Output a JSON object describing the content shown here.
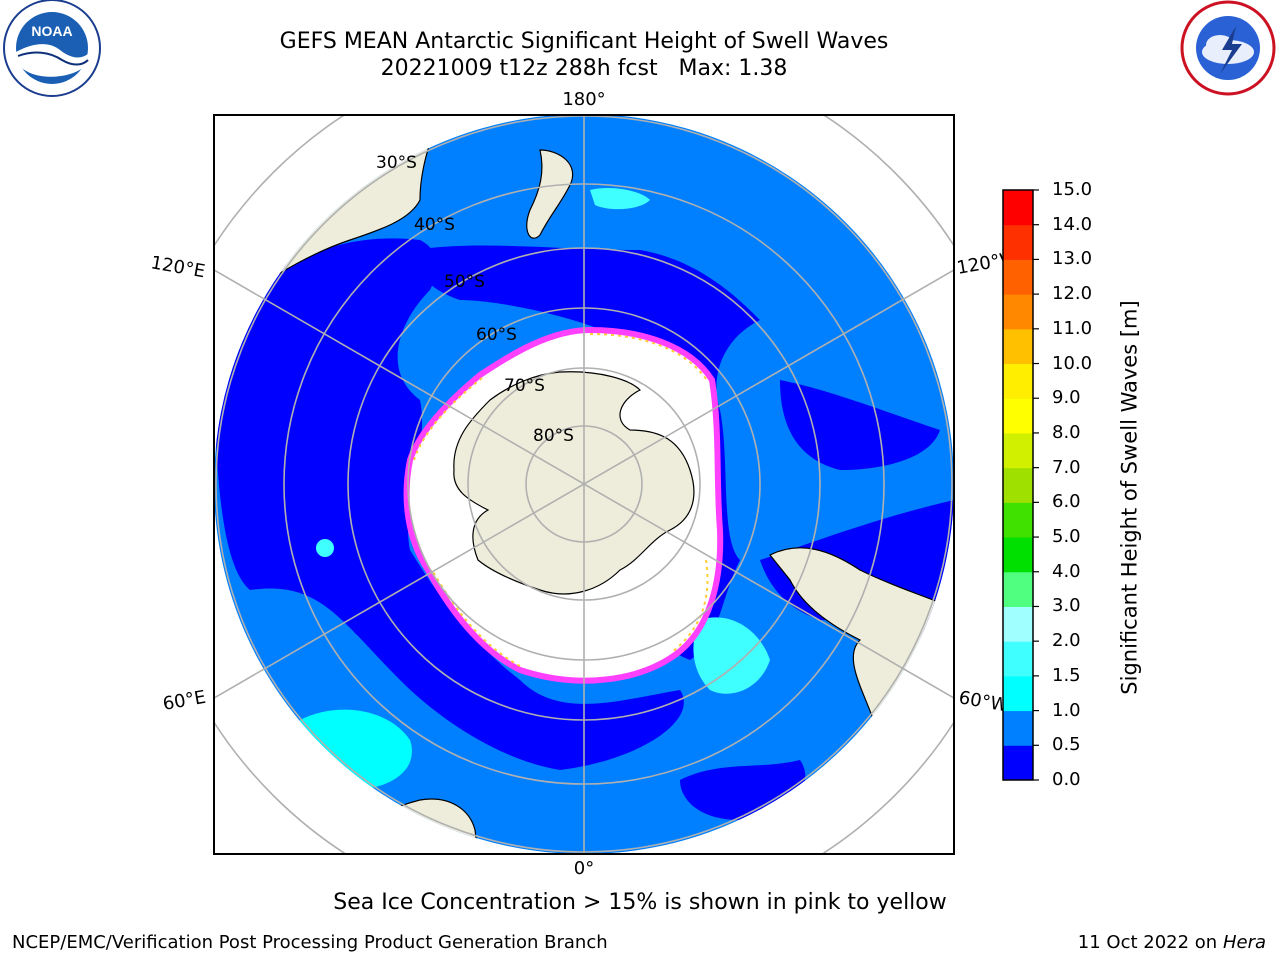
{
  "header": {
    "title_line1": "GEFS MEAN Antarctic Significant Height of Swell Waves",
    "title_line2": "20221009 t12z 288h fcst   Max: 1.38"
  },
  "logos": {
    "left": {
      "name": "noaa-logo",
      "text": "NOAA",
      "ring_text": "NATIONAL OCEANIC AND ATMOSPHERIC ADMINISTRATION · U.S. DEPARTMENT OF COMMERCE"
    },
    "right": {
      "name": "nws-logo",
      "ring_text": "NATIONAL WEATHER SERVICE"
    }
  },
  "map": {
    "projection": "South Polar Stereographic",
    "longitude_labels": {
      "top": "180°",
      "bottom": "0°",
      "upper_left": "120°E",
      "upper_right": "120°W",
      "lower_left": "60°E",
      "lower_right": "60°W"
    },
    "latitude_labels": [
      "30°S",
      "40°S",
      "50°S",
      "60°S",
      "70°S",
      "80°S"
    ],
    "colors": {
      "land": "#eeeddb",
      "ice_free_low": "#0000ff",
      "swell_0_5_1_0": "#0080ff",
      "swell_1_0_1_5": "#00ffff",
      "sea_ice": "#ffffff",
      "ice_edge_pink": "#ff40ff",
      "ice_edge_yellow": "#ffdd00",
      "gridline": "#b0b0b0"
    }
  },
  "colorbar": {
    "label": "Significant Height of Swell Waves [m]",
    "ticks": [
      "0.0",
      "0.5",
      "1.0",
      "1.5",
      "2.0",
      "3.0",
      "4.0",
      "5.0",
      "6.0",
      "7.0",
      "8.0",
      "9.0",
      "10.0",
      "11.0",
      "12.0",
      "13.0",
      "14.0",
      "15.0"
    ],
    "colors": [
      "#0000ff",
      "#0080ff",
      "#00ffff",
      "#40ffff",
      "#a0ffff",
      "#50ff80",
      "#00e000",
      "#40e000",
      "#a0e000",
      "#d0f000",
      "#ffff00",
      "#ffee00",
      "#ffc000",
      "#ff8800",
      "#ff6000",
      "#ff3000",
      "#ff0000"
    ]
  },
  "footer": {
    "caption": "Sea Ice Concentration > 15% is shown in pink to yellow",
    "left": "NCEP/EMC/Verification Post Processing Product Generation Branch",
    "right_prefix": "11 Oct 2022 on ",
    "right_host": "Hera"
  }
}
